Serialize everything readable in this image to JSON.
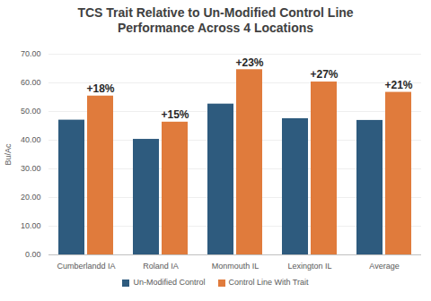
{
  "chart_data": {
    "type": "bar",
    "title": "TCS Trait Relative to Un-Modified Control Line Performance Across 4 Locations",
    "y_label": "Bu/Ac",
    "categories": [
      "Cumberlandd IA",
      "Roland IA",
      "Monmouth IL",
      "Lexington IL",
      "Average"
    ],
    "series": [
      {
        "name": "Un-Modified Control",
        "color": "#2e5b7e",
        "values": [
          47.0,
          40.3,
          52.6,
          47.5,
          46.9
        ]
      },
      {
        "name": "Control Line With Trait",
        "color": "#e07b3c",
        "values": [
          55.4,
          46.3,
          64.6,
          60.3,
          56.7
        ]
      }
    ],
    "annotations": [
      {
        "category": "Cumberlandd IA",
        "series": "Control Line With Trait",
        "text": "+18%"
      },
      {
        "category": "Roland IA",
        "series": "Control Line With Trait",
        "text": "+15%"
      },
      {
        "category": "Monmouth IL",
        "series": "Control Line With Trait",
        "text": "+23%"
      },
      {
        "category": "Lexington IL",
        "series": "Control Line With Trait",
        "text": "+27%"
      },
      {
        "category": "Average",
        "series": "Control Line With Trait",
        "text": "+21%"
      }
    ],
    "ylim": [
      0,
      70
    ],
    "yticks": [
      {
        "value": 0,
        "label": "0.00"
      },
      {
        "value": 10,
        "label": "10.00"
      },
      {
        "value": 20,
        "label": "20.00"
      },
      {
        "value": 30,
        "label": "30.00"
      },
      {
        "value": 40,
        "label": "40.00"
      },
      {
        "value": 50,
        "label": "50.00"
      },
      {
        "value": 60,
        "label": "60.00"
      },
      {
        "value": 70,
        "label": "70.00"
      }
    ],
    "grid": true,
    "legend": "bottom"
  }
}
